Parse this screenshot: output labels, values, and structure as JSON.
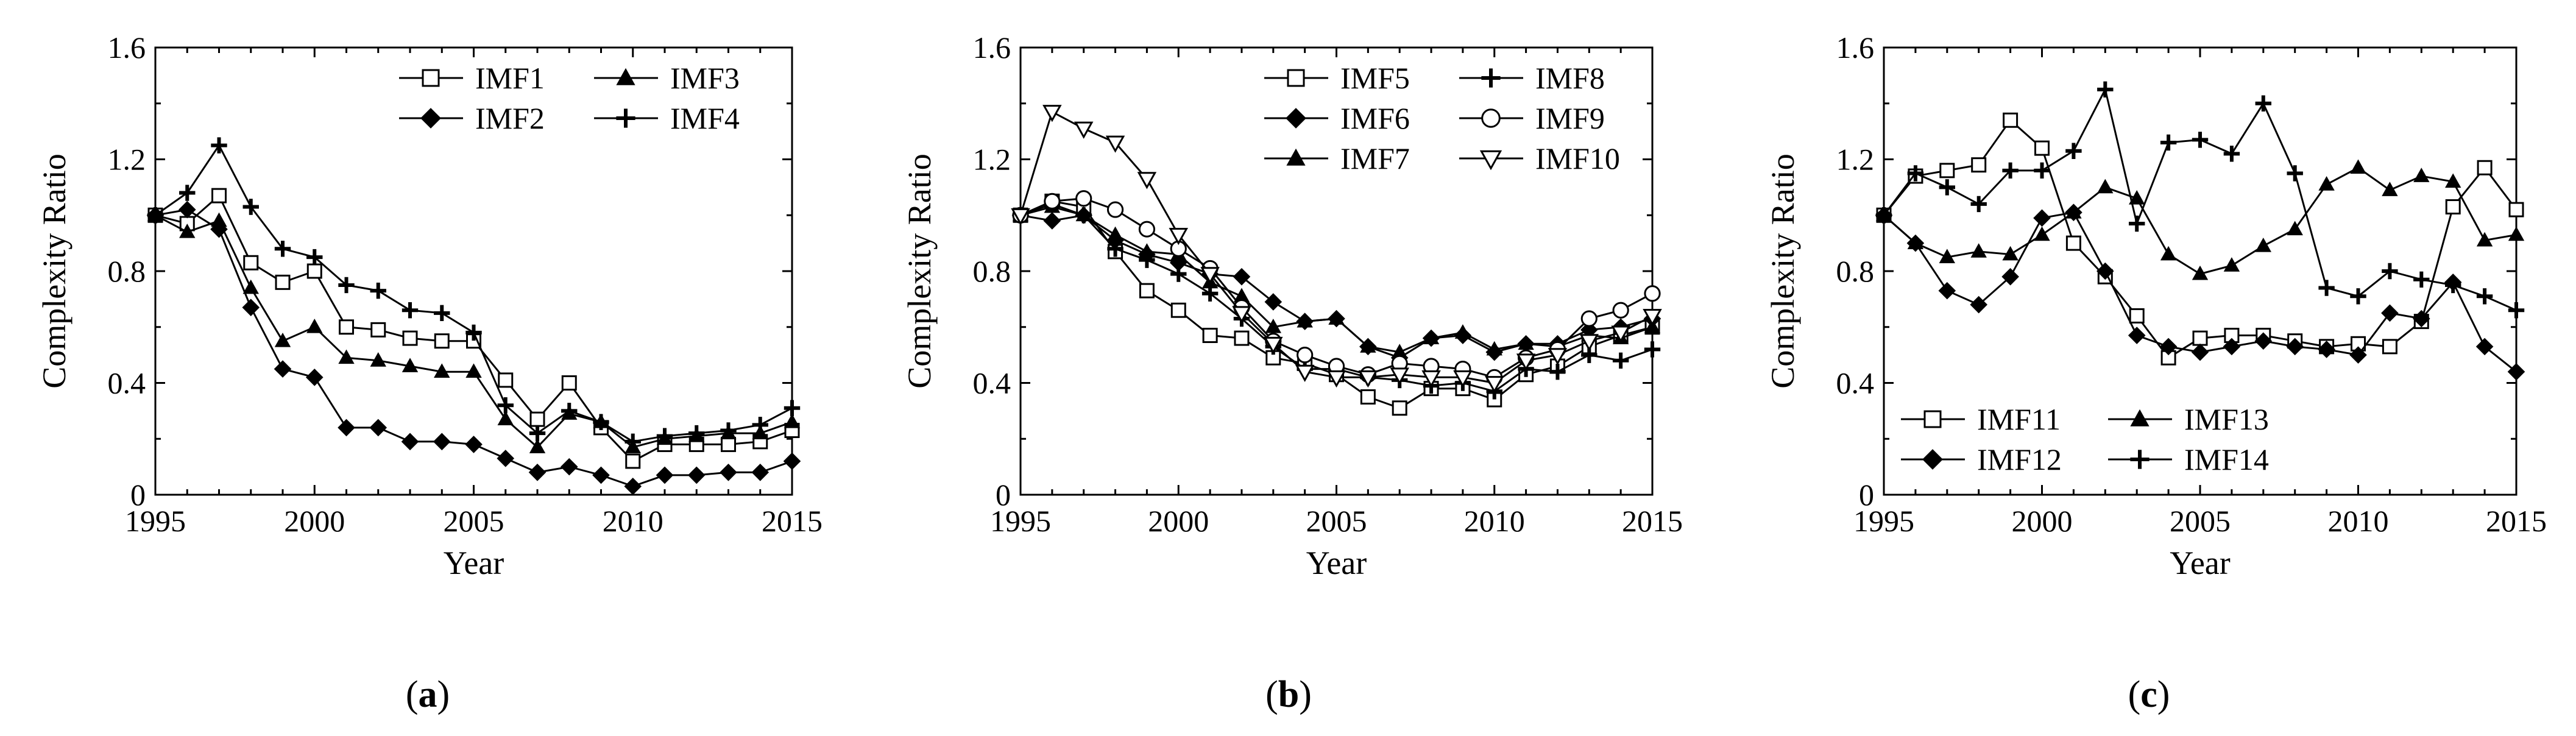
{
  "figure": {
    "panel_labels": [
      {
        "open": "(",
        "letter": "a",
        "close": ")"
      },
      {
        "open": "(",
        "letter": "b",
        "close": ")"
      },
      {
        "open": "(",
        "letter": "c",
        "close": ")"
      }
    ]
  },
  "chart_data": [
    {
      "type": "line",
      "panel": "a",
      "xlabel": "Year",
      "ylabel": "Complexity Ratio",
      "xlim": [
        1995,
        2015
      ],
      "ylim": [
        0,
        1.6
      ],
      "xticks": [
        1995,
        2000,
        2005,
        2010,
        2015
      ],
      "xtick_labels": [
        "1995",
        "2000",
        "2005",
        "2010",
        "2015"
      ],
      "yticks": [
        0,
        0.4,
        0.8,
        1.2,
        1.6
      ],
      "ytick_labels": [
        "0",
        "0.4",
        "0.8",
        "1.2",
        "1.6"
      ],
      "legend": "top-right",
      "x": [
        1995,
        1996,
        1997,
        1998,
        1999,
        2000,
        2001,
        2002,
        2003,
        2004,
        2005,
        2006,
        2007,
        2008,
        2009,
        2010,
        2011,
        2012,
        2013,
        2014,
        2015
      ],
      "series": [
        {
          "name": "IMF1",
          "marker": "square-open",
          "values": [
            1.0,
            0.97,
            1.07,
            0.83,
            0.76,
            0.8,
            0.6,
            0.59,
            0.56,
            0.55,
            0.55,
            0.41,
            0.27,
            0.4,
            0.24,
            0.12,
            0.18,
            0.18,
            0.18,
            0.19,
            0.23
          ]
        },
        {
          "name": "IMF2",
          "marker": "diamond-filled",
          "values": [
            1.0,
            1.02,
            0.95,
            0.67,
            0.45,
            0.42,
            0.24,
            0.24,
            0.19,
            0.19,
            0.18,
            0.13,
            0.08,
            0.1,
            0.07,
            0.03,
            0.07,
            0.07,
            0.08,
            0.08,
            0.12
          ]
        },
        {
          "name": "IMF3",
          "marker": "triangle-filled",
          "values": [
            1.0,
            0.94,
            0.98,
            0.74,
            0.55,
            0.6,
            0.49,
            0.48,
            0.46,
            0.44,
            0.44,
            0.27,
            0.17,
            0.29,
            0.26,
            0.17,
            0.2,
            0.21,
            0.22,
            0.22,
            0.26
          ]
        },
        {
          "name": "IMF4",
          "marker": "plus",
          "values": [
            1.0,
            1.08,
            1.25,
            1.03,
            0.88,
            0.85,
            0.75,
            0.73,
            0.66,
            0.65,
            0.58,
            0.32,
            0.22,
            0.3,
            0.26,
            0.19,
            0.21,
            0.22,
            0.23,
            0.25,
            0.31
          ]
        }
      ]
    },
    {
      "type": "line",
      "panel": "b",
      "xlabel": "Year",
      "ylabel": "Complexity Ratio",
      "xlim": [
        1995,
        2015
      ],
      "ylim": [
        0,
        1.6
      ],
      "xticks": [
        1995,
        2000,
        2005,
        2010,
        2015
      ],
      "xtick_labels": [
        "1995",
        "2000",
        "2005",
        "2010",
        "2015"
      ],
      "yticks": [
        0,
        0.4,
        0.8,
        1.2,
        1.6
      ],
      "ytick_labels": [
        "0",
        "0.4",
        "0.8",
        "1.2",
        "1.6"
      ],
      "legend": "top-right",
      "x": [
        1995,
        1996,
        1997,
        1998,
        1999,
        2000,
        2001,
        2002,
        2003,
        2004,
        2005,
        2006,
        2007,
        2008,
        2009,
        2010,
        2011,
        2012,
        2013,
        2014,
        2015
      ],
      "series": [
        {
          "name": "IMF5",
          "marker": "square-open",
          "values": [
            1.0,
            1.05,
            1.03,
            0.87,
            0.73,
            0.66,
            0.57,
            0.56,
            0.49,
            0.47,
            0.43,
            0.35,
            0.31,
            0.38,
            0.38,
            0.34,
            0.43,
            0.46,
            0.53,
            0.57,
            0.6
          ]
        },
        {
          "name": "IMF6",
          "marker": "diamond-filled",
          "values": [
            1.0,
            0.98,
            1.0,
            0.91,
            0.86,
            0.83,
            0.79,
            0.78,
            0.69,
            0.62,
            0.63,
            0.53,
            0.49,
            0.56,
            0.57,
            0.51,
            0.54,
            0.54,
            0.59,
            0.6,
            0.63
          ]
        },
        {
          "name": "IMF7",
          "marker": "triangle-filled",
          "values": [
            1.0,
            1.03,
            1.0,
            0.93,
            0.87,
            0.86,
            0.76,
            0.71,
            0.6,
            0.62,
            0.63,
            0.53,
            0.51,
            0.56,
            0.58,
            0.52,
            0.54,
            0.53,
            0.57,
            0.56,
            0.6
          ]
        },
        {
          "name": "IMF8",
          "marker": "plus",
          "values": [
            1.0,
            1.04,
            1.0,
            0.88,
            0.84,
            0.79,
            0.72,
            0.63,
            0.53,
            0.45,
            0.45,
            0.42,
            0.41,
            0.39,
            0.4,
            0.37,
            0.45,
            0.44,
            0.5,
            0.48,
            0.52
          ]
        },
        {
          "name": "IMF9",
          "marker": "circle-open",
          "values": [
            1.0,
            1.05,
            1.06,
            1.02,
            0.95,
            0.88,
            0.81,
            0.67,
            0.55,
            0.5,
            0.46,
            0.43,
            0.47,
            0.46,
            0.45,
            0.42,
            0.49,
            0.52,
            0.63,
            0.66,
            0.72
          ]
        },
        {
          "name": "IMF10",
          "marker": "triangle-down-open",
          "values": [
            1.0,
            1.37,
            1.31,
            1.26,
            1.13,
            0.93,
            0.79,
            0.65,
            0.54,
            0.44,
            0.42,
            0.42,
            0.43,
            0.42,
            0.42,
            0.4,
            0.48,
            0.5,
            0.55,
            0.58,
            0.64
          ]
        }
      ]
    },
    {
      "type": "line",
      "panel": "c",
      "xlabel": "Year",
      "ylabel": "Complexity Ratio",
      "xlim": [
        1995,
        2015
      ],
      "ylim": [
        0,
        1.6
      ],
      "xticks": [
        1995,
        2000,
        2005,
        2010,
        2015
      ],
      "xtick_labels": [
        "1995",
        "2000",
        "2005",
        "2010",
        "2015"
      ],
      "yticks": [
        0,
        0.4,
        0.8,
        1.2,
        1.6
      ],
      "ytick_labels": [
        "0",
        "0.4",
        "0.8",
        "1.2",
        "1.6"
      ],
      "legend": "bottom-left",
      "x": [
        1995,
        1996,
        1997,
        1998,
        1999,
        2000,
        2001,
        2002,
        2003,
        2004,
        2005,
        2006,
        2007,
        2008,
        2009,
        2010,
        2011,
        2012,
        2013,
        2014,
        2015
      ],
      "series": [
        {
          "name": "IMF11",
          "marker": "square-open",
          "values": [
            1.0,
            1.14,
            1.16,
            1.18,
            1.34,
            1.24,
            0.9,
            0.78,
            0.64,
            0.49,
            0.56,
            0.57,
            0.57,
            0.55,
            0.53,
            0.54,
            0.53,
            0.62,
            1.03,
            1.17,
            1.02
          ]
        },
        {
          "name": "IMF12",
          "marker": "diamond-filled",
          "values": [
            1.0,
            0.9,
            0.73,
            0.68,
            0.78,
            0.99,
            1.01,
            0.8,
            0.57,
            0.53,
            0.51,
            0.53,
            0.55,
            0.53,
            0.52,
            0.5,
            0.65,
            0.63,
            0.76,
            0.53,
            0.44
          ]
        },
        {
          "name": "IMF13",
          "marker": "triangle-filled",
          "values": [
            1.0,
            0.9,
            0.85,
            0.87,
            0.86,
            0.93,
            1.01,
            1.1,
            1.06,
            0.86,
            0.79,
            0.82,
            0.89,
            0.95,
            1.11,
            1.17,
            1.09,
            1.14,
            1.12,
            0.91,
            0.93
          ]
        },
        {
          "name": "IMF14",
          "marker": "plus",
          "values": [
            1.0,
            1.15,
            1.1,
            1.04,
            1.16,
            1.16,
            1.23,
            1.45,
            0.97,
            1.26,
            1.27,
            1.22,
            1.4,
            1.15,
            0.74,
            0.71,
            0.8,
            0.77,
            0.75,
            0.71,
            0.66
          ]
        }
      ]
    }
  ]
}
